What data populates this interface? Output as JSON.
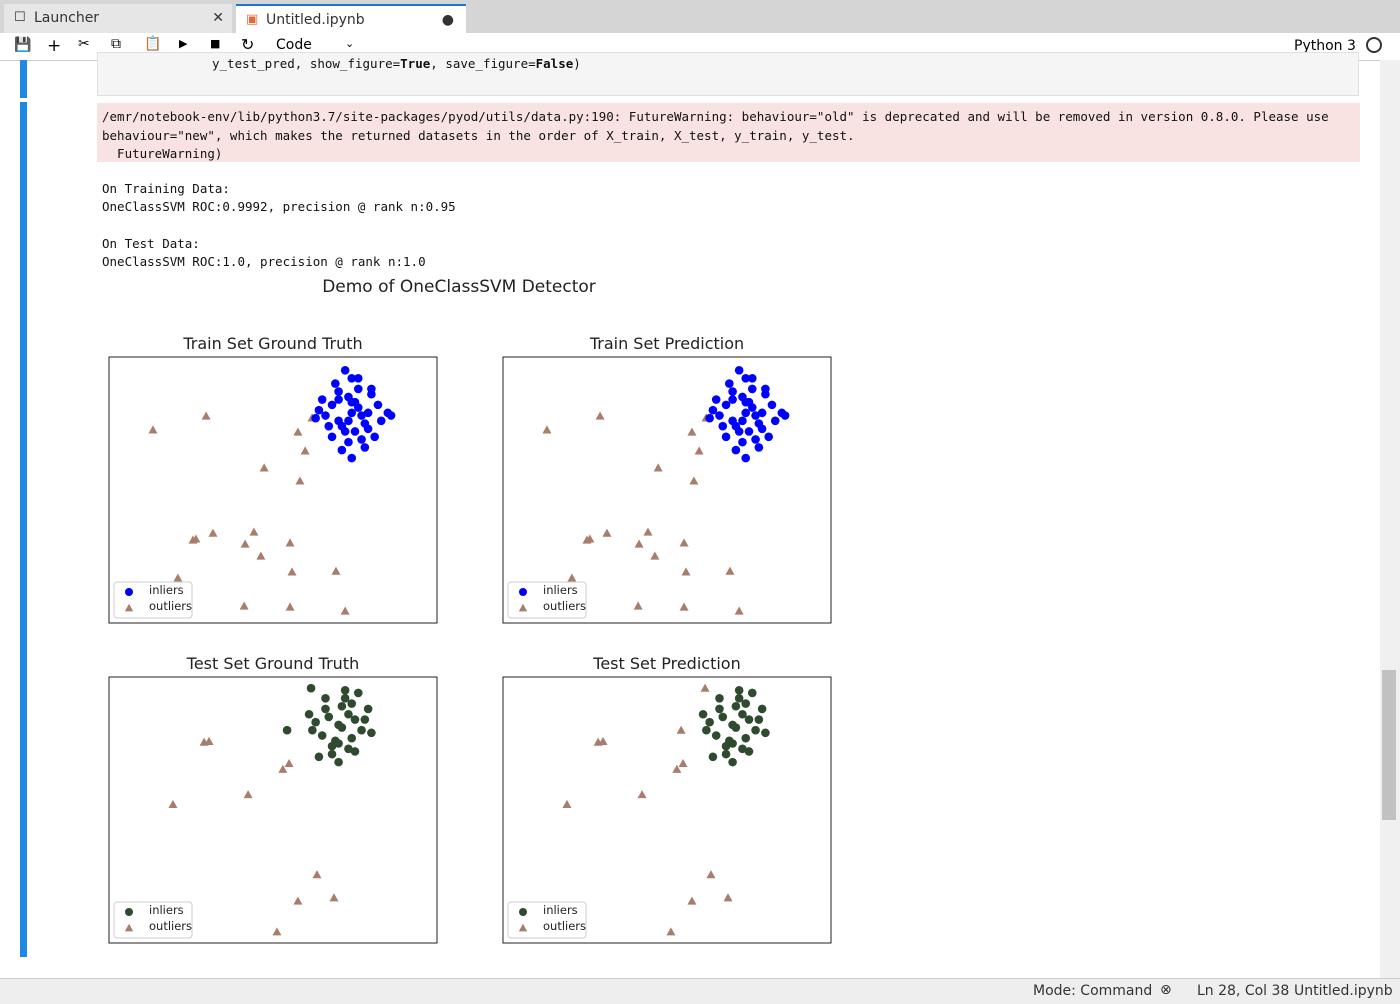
{
  "tabs": [
    {
      "label": "Launcher"
    },
    {
      "label": "Untitled.ipynb"
    }
  ],
  "toolbar": {
    "cell_type": "Code",
    "kernel": "Python 3"
  },
  "cell": {
    "code_parts": [
      "y_test_pred, show_figure=",
      "True",
      ", save_figure=",
      "False",
      ")"
    ]
  },
  "stderr": {
    "lines": [
      "/emr/notebook-env/lib/python3.7/site-packages/pyod/utils/data.py:190: FutureWarning: behaviour=\"old\" is deprecated and will be removed in version 0.8.0. Please use",
      "behaviour=\"new\", which makes the returned datasets in the order of X_train, X_test, y_train, y_test.",
      "  FutureWarning)"
    ]
  },
  "stdout": {
    "blocks": [
      [
        "On Training Data:",
        "OneClassSVM ROC:0.9992, precision @ rank n:0.95"
      ],
      [
        "On Test Data:",
        "OneClassSVM ROC:1.0, precision @ rank n:1.0"
      ]
    ]
  },
  "figure": {
    "title": "Demo of OneClassSVM Detector",
    "legend": [
      "inliers",
      "outliers"
    ],
    "outlier_color": "#a87d6c",
    "xlim": [
      0,
      100
    ],
    "ylim": [
      0,
      100
    ],
    "subplots": [
      {
        "title": "Train Set Ground Truth",
        "dataset": "train",
        "inlier_color": "#0000ff"
      },
      {
        "title": "Train Set Prediction",
        "dataset": "train",
        "inlier_color": "#0000ff"
      },
      {
        "title": "Test Set Ground Truth",
        "dataset": "test",
        "inlier_color": "#2f4a2f"
      },
      {
        "title": "Test Set Prediction",
        "dataset": "test_pred",
        "inlier_color": "#2f4a2f"
      }
    ],
    "datasets": {
      "train": {
        "inliers": {
          "x": [
            74,
            70,
            78,
            66,
            82,
            72,
            76,
            68,
            80,
            74,
            64,
            85,
            71,
            77,
            73,
            69,
            79,
            75,
            67,
            83,
            72,
            76,
            70,
            78,
            74,
            81,
            65,
            73,
            77,
            71,
            75,
            86,
            68,
            79,
            73,
            76,
            70,
            63,
            80,
            74
          ],
          "y": [
            79,
            84,
            75,
            78,
            82,
            72,
            88,
            70,
            86,
            92,
            80,
            79,
            65,
            69,
            76,
            90,
            73,
            83,
            74,
            76,
            95,
            81,
            87,
            66,
            62,
            70,
            84,
            85,
            78,
            74,
            72,
            78,
            82,
            79,
            68,
            92,
            76,
            77,
            88,
            83
          ]
        },
        "outliers": {
          "x": [
            13.4,
            29.6,
            57.6,
            59.8,
            61.9,
            47.3,
            58.2,
            26.5,
            31.7,
            44.2,
            41.5,
            46.3,
            55.2,
            21.0,
            55.8,
            69.2,
            41.2,
            55.2,
            72.0,
            25.6
          ],
          "y": [
            72.6,
            77.8,
            71.8,
            64.7,
            77.1,
            58.3,
            53.4,
            31.6,
            33.8,
            34.2,
            29.7,
            25.2,
            30.1,
            16.9,
            19.2,
            19.5,
            6.4,
            6.0,
            4.5,
            31.2
          ]
        }
      },
      "test": {
        "inliers": {
          "x": [
            70,
            66,
            74,
            62,
            78,
            68,
            72,
            64,
            76,
            70,
            80,
            67,
            73,
            69,
            75,
            71,
            65,
            77,
            63,
            72,
            68,
            74,
            70,
            79,
            66,
            71,
            73,
            75,
            61,
            54.3,
            61.6
          ],
          "y": [
            82,
            88,
            77,
            80,
            84,
            74,
            92,
            70,
            94,
            68,
            79,
            85,
            86,
            76,
            72,
            89,
            78,
            80,
            83,
            95,
            71,
            90,
            75,
            88,
            92,
            81,
            73,
            84,
            86,
            80.0,
            95.8
          ]
        },
        "outliers": {
          "x": [
            29.0,
            30.5,
            54.9,
            53.0,
            42.4,
            19.5,
            63.4,
            57.6,
            68.6,
            51.2
          ],
          "y": [
            75.5,
            75.8,
            67.5,
            65.3,
            55.8,
            52.1,
            25.7,
            15.8,
            17.0,
            4.2
          ]
        }
      },
      "test_pred": {
        "inliers": {
          "x": [
            70,
            66,
            74,
            62,
            78,
            68,
            72,
            64,
            76,
            70,
            80,
            67,
            73,
            69,
            75,
            71,
            65,
            77,
            63,
            72,
            68,
            74,
            70,
            79,
            66,
            71,
            73,
            75,
            61
          ],
          "y": [
            82,
            88,
            77,
            80,
            84,
            74,
            92,
            70,
            94,
            68,
            79,
            85,
            86,
            76,
            72,
            89,
            78,
            80,
            83,
            95,
            71,
            90,
            75,
            88,
            92,
            81,
            73,
            84,
            86
          ]
        },
        "outliers": {
          "x": [
            29.0,
            30.5,
            54.9,
            53.0,
            42.4,
            19.5,
            63.4,
            57.6,
            68.6,
            51.2,
            54.3,
            61.6
          ],
          "y": [
            75.5,
            75.8,
            67.5,
            65.3,
            55.8,
            52.1,
            25.7,
            15.8,
            17.0,
            4.2,
            80.0,
            95.8
          ]
        }
      }
    }
  },
  "status": {
    "mode": "Mode: Command",
    "position": "Ln 28, Col 38",
    "file": "Untitled.ipynb"
  }
}
